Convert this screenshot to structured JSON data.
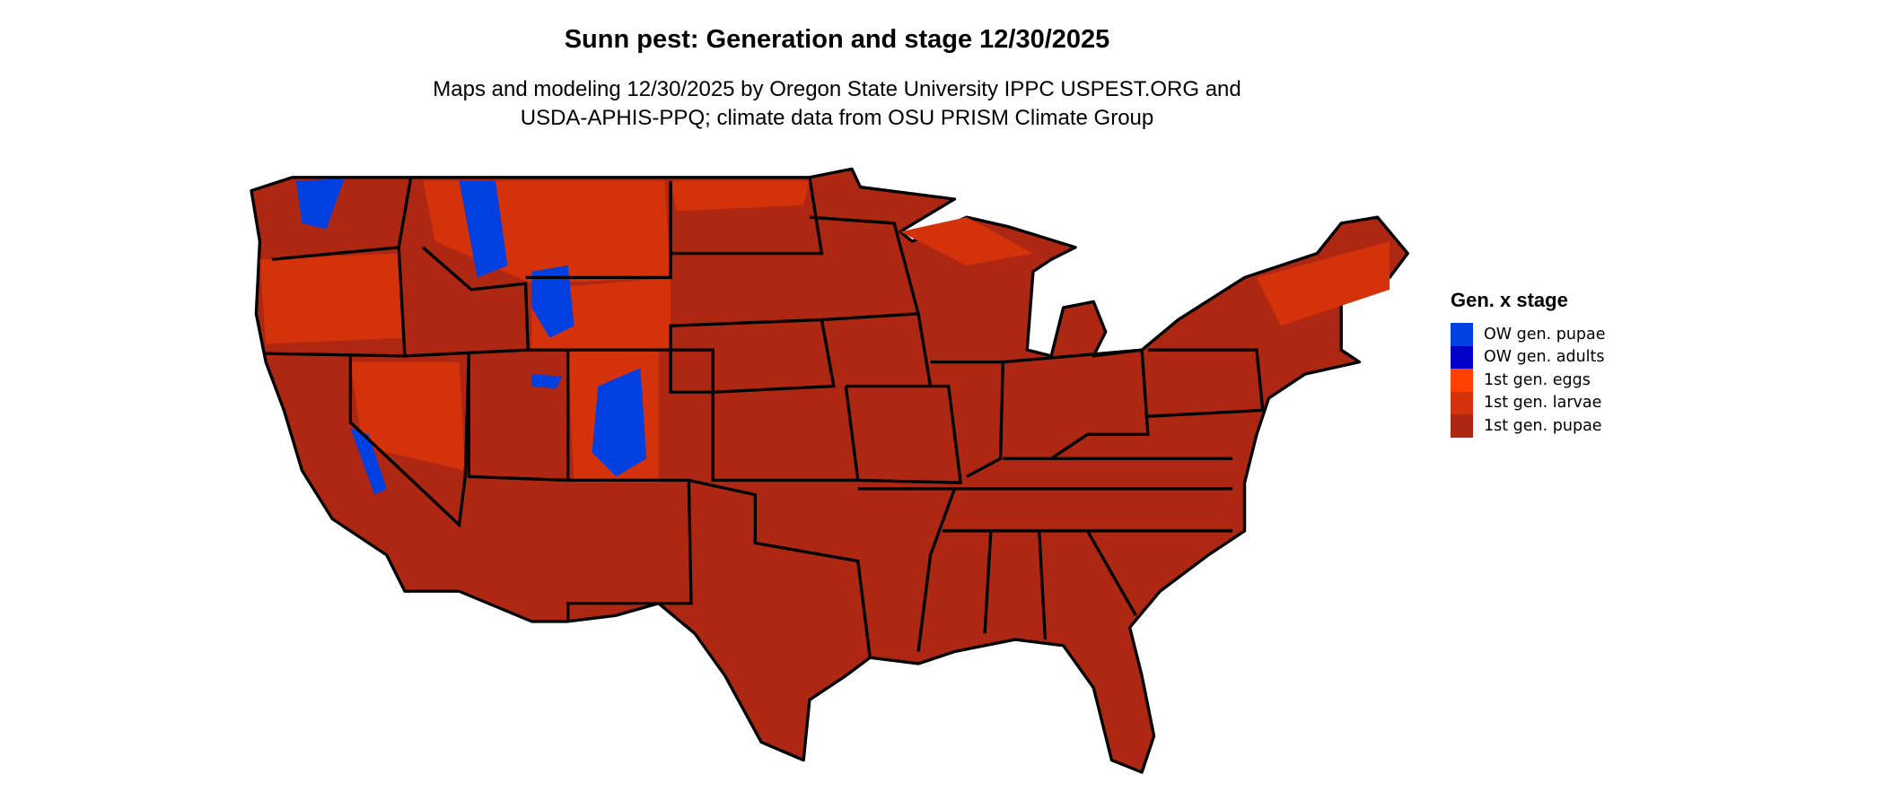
{
  "title": "Sunn pest: Generation and stage 12/30/2025",
  "subtitle_lines": [
    "Maps and modeling 12/30/2025 by Oregon State University IPPC USPEST.ORG and",
    "USDA-APHIS-PPQ; climate data from OSU PRISM Climate Group"
  ],
  "legend": {
    "title": "Gen. x stage",
    "items": [
      {
        "label": "OW gen. pupae",
        "color": "#0040E0"
      },
      {
        "label": "OW gen. adults",
        "color": "#0000C8"
      },
      {
        "label": "1st gen. eggs",
        "color": "#FF4000"
      },
      {
        "label": "1st gen. larvae",
        "color": "#D4320A"
      },
      {
        "label": "1st gen. pupae",
        "color": "#AE2712"
      }
    ]
  },
  "map": {
    "region": "Contiguous United States",
    "dominant_class": "1st gen. pupae",
    "border_color": "#000000"
  }
}
